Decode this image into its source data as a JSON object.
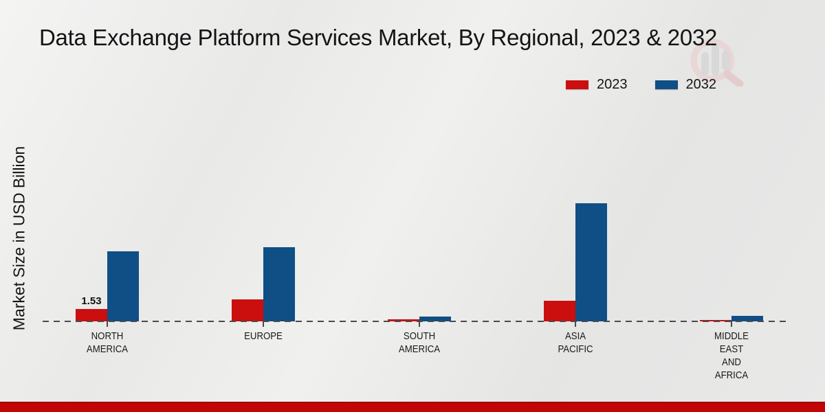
{
  "title": "Data Exchange Platform Services Market, By Regional, 2023 & 2032",
  "y_axis_label": "Market Size in USD Billion",
  "legend": [
    {
      "label": "2023",
      "color": "#cb0e0e"
    },
    {
      "label": "2032",
      "color": "#104e86"
    }
  ],
  "footer_band_color": "#c20505",
  "watermark": {
    "name": "market-research-future-logo"
  },
  "chart_data": {
    "type": "bar",
    "title": "Data Exchange Platform Services Market, By Regional, 2023 & 2032",
    "xlabel": "",
    "ylabel": "Market Size in USD Billion",
    "categories": [
      "NORTH AMERICA",
      "EUROPE",
      "SOUTH AMERICA",
      "ASIA PACIFIC",
      "MIDDLE EAST AND AFRICA"
    ],
    "series": [
      {
        "name": "2023",
        "color": "#cb0e0e",
        "values": [
          1.53,
          2.7,
          0.28,
          2.55,
          0.17
        ]
      },
      {
        "name": "2032",
        "color": "#104e86",
        "values": [
          8.7,
          9.2,
          0.6,
          14.6,
          0.65
        ]
      }
    ],
    "bar_labels": [
      {
        "category": "NORTH AMERICA",
        "series": "2023",
        "text": "1.53"
      }
    ],
    "ylim": [
      0,
      16
    ],
    "grid": false,
    "legend_position": "top-right",
    "baseline_style": "dashed",
    "units": "USD Billion"
  }
}
